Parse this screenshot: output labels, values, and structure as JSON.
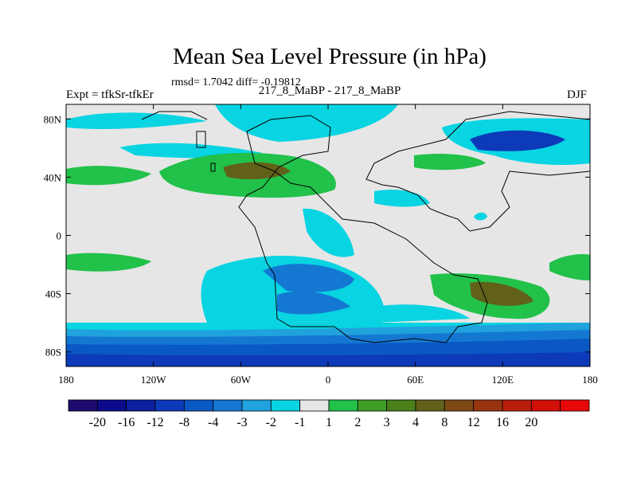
{
  "title": "Mean Sea Level Pressure (in hPa)",
  "stats": "rmsd= 1.7042 diff= -0.19812",
  "experiment": "Expt = tfkSr-tfkEr",
  "cases": "217_8_MaBP - 217_8_MaBP",
  "season": "DJF",
  "x_ticks": [
    "180",
    "120W",
    "60W",
    "0",
    "60E",
    "120E",
    "180"
  ],
  "y_ticks": [
    "80N",
    "40N",
    "0",
    "40S",
    "80S"
  ],
  "colorbar": {
    "colors": [
      "#1e0a6e",
      "#0b0b8c",
      "#0c1fa0",
      "#0d3ab8",
      "#0a58c4",
      "#1478d2",
      "#20a2dc",
      "#08d4e2",
      "#e6e6e6",
      "#21c14a",
      "#3f9e27",
      "#4a7f1a",
      "#61611a",
      "#7c4a14",
      "#98340f",
      "#b81e0a",
      "#d20f08",
      "#e80808"
    ],
    "labels": [
      "-20",
      "-16",
      "-12",
      "-8",
      "-4",
      "-3",
      "-2",
      "-1",
      "1",
      "2",
      "3",
      "4",
      "8",
      "12",
      "16",
      "20"
    ]
  },
  "chart_data": {
    "type": "filled-contour map",
    "title": "Mean Sea Level Pressure (in hPa)",
    "units": "hPa",
    "xlim": [
      -180,
      180
    ],
    "ylim": [
      -90,
      90
    ],
    "levels": [
      -20,
      -16,
      -12,
      -8,
      -4,
      -3,
      -2,
      -1,
      1,
      2,
      3,
      4,
      8,
      12,
      16,
      20
    ],
    "regions": [
      {
        "name": "southern-ocean-low",
        "lon": [
          -180,
          180
        ],
        "lat": [
          -90,
          -60
        ],
        "min_level": -12
      },
      {
        "name": "south-america-low",
        "lon": [
          -60,
          20
        ],
        "lat": [
          -60,
          -15
        ],
        "level": -3
      },
      {
        "name": "north-atlantic-high",
        "lon": [
          -90,
          -10
        ],
        "lat": [
          25,
          55
        ],
        "level": 4
      },
      {
        "name": "siberia-low",
        "lon": [
          85,
          150
        ],
        "lat": [
          55,
          80
        ],
        "level": -4
      },
      {
        "name": "australia-high",
        "lon": [
          90,
          150
        ],
        "lat": [
          -50,
          -30
        ],
        "level": 3
      }
    ]
  }
}
